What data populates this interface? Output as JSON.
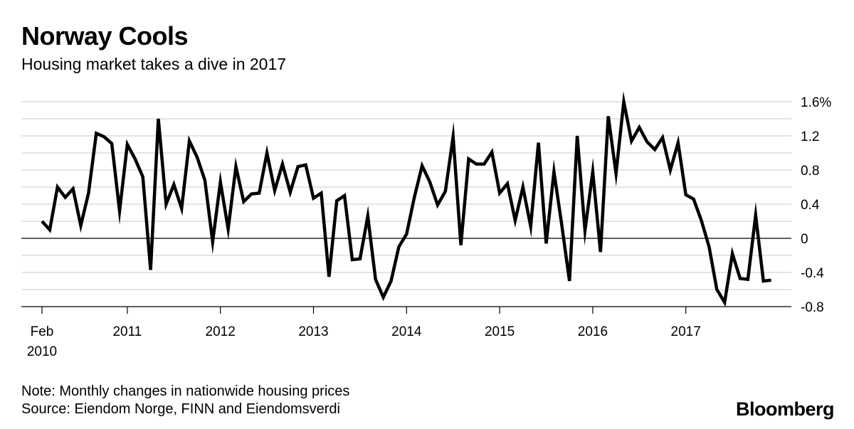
{
  "header": {
    "title": "Norway Cools",
    "subtitle": "Housing market takes a dive in 2017"
  },
  "footer": {
    "note": "Note: Monthly changes in nationwide housing prices",
    "source": "Source: Eiendom Norge, FINN and Eiendomsverdi",
    "brand": "Bloomberg"
  },
  "chart_data": {
    "type": "line",
    "title": "Norway Cools",
    "subtitle": "Housing market takes a dive in 2017",
    "xlabel": "",
    "ylabel": "",
    "ylim": [
      -0.8,
      1.6
    ],
    "yticks": [
      1.6,
      1.2,
      0.8,
      0.4,
      0,
      -0.4,
      -0.8
    ],
    "ytick_labels": [
      "1.6%",
      "1.2",
      "0.8",
      "0.4",
      "0",
      "-0.4",
      "-0.8"
    ],
    "xtick_labels": [
      {
        "date": "2010-02",
        "line1": "Feb",
        "line2": "2010"
      },
      {
        "date": "2011-01",
        "line1": "2011",
        "line2": ""
      },
      {
        "date": "2012-01",
        "line1": "2012",
        "line2": ""
      },
      {
        "date": "2013-01",
        "line1": "2013",
        "line2": ""
      },
      {
        "date": "2014-01",
        "line1": "2014",
        "line2": ""
      },
      {
        "date": "2015-01",
        "line1": "2015",
        "line2": ""
      },
      {
        "date": "2016-01",
        "line1": "2016",
        "line2": ""
      },
      {
        "date": "2017-01",
        "line1": "2017",
        "line2": ""
      }
    ],
    "grid": true,
    "line_color": "#000000",
    "series": [
      {
        "x": [
          "2010-02",
          "2010-03",
          "2010-04",
          "2010-05",
          "2010-06",
          "2010-07",
          "2010-08",
          "2010-09",
          "2010-10",
          "2010-11",
          "2010-12",
          "2011-01",
          "2011-02",
          "2011-03",
          "2011-04",
          "2011-05",
          "2011-06",
          "2011-07",
          "2011-08",
          "2011-09",
          "2011-10",
          "2011-11",
          "2011-12",
          "2012-01",
          "2012-02",
          "2012-03",
          "2012-04",
          "2012-05",
          "2012-06",
          "2012-07",
          "2012-08",
          "2012-09",
          "2012-10",
          "2012-11",
          "2012-12",
          "2013-01",
          "2013-02",
          "2013-03",
          "2013-04",
          "2013-05",
          "2013-06",
          "2013-07",
          "2013-08",
          "2013-09",
          "2013-10",
          "2013-11",
          "2013-12",
          "2014-01",
          "2014-02",
          "2014-03",
          "2014-04",
          "2014-05",
          "2014-06",
          "2014-07",
          "2014-08",
          "2014-09",
          "2014-10",
          "2014-11",
          "2014-12",
          "2015-01",
          "2015-02",
          "2015-03",
          "2015-04",
          "2015-05",
          "2015-06",
          "2015-07",
          "2015-08",
          "2015-09",
          "2015-10",
          "2015-11",
          "2015-12",
          "2016-01",
          "2016-02",
          "2016-03",
          "2016-04",
          "2016-05",
          "2016-06",
          "2016-07",
          "2016-08",
          "2016-09",
          "2016-10",
          "2016-11",
          "2016-12",
          "2017-01",
          "2017-02",
          "2017-03",
          "2017-04",
          "2017-05",
          "2017-06",
          "2017-07",
          "2017-08",
          "2017-09",
          "2017-10",
          "2017-11",
          "2017-12"
        ],
        "values": [
          0.2,
          0.1,
          0.6,
          0.48,
          0.58,
          0.15,
          0.53,
          1.23,
          1.19,
          1.11,
          0.32,
          1.1,
          0.93,
          0.72,
          -0.37,
          1.4,
          0.4,
          0.63,
          0.35,
          1.14,
          0.95,
          0.68,
          -0.04,
          0.66,
          0.11,
          0.84,
          0.43,
          0.52,
          0.53,
          1.0,
          0.56,
          0.87,
          0.54,
          0.84,
          0.86,
          0.47,
          0.53,
          -0.45,
          0.44,
          0.5,
          -0.25,
          -0.24,
          0.26,
          -0.48,
          -0.69,
          -0.5,
          -0.1,
          0.05,
          0.48,
          0.85,
          0.66,
          0.39,
          0.55,
          1.19,
          -0.08,
          0.93,
          0.87,
          0.87,
          1.01,
          0.53,
          0.64,
          0.21,
          0.6,
          0.14,
          1.12,
          -0.06,
          0.78,
          0.16,
          -0.5,
          1.2,
          0.09,
          0.78,
          -0.16,
          1.43,
          0.76,
          1.6,
          1.14,
          1.3,
          1.13,
          1.04,
          1.18,
          0.8,
          1.12,
          0.51,
          0.46,
          0.21,
          -0.1,
          -0.6,
          -0.75,
          -0.18,
          -0.47,
          -0.48,
          0.27,
          -0.5,
          -0.49
        ]
      }
    ]
  }
}
